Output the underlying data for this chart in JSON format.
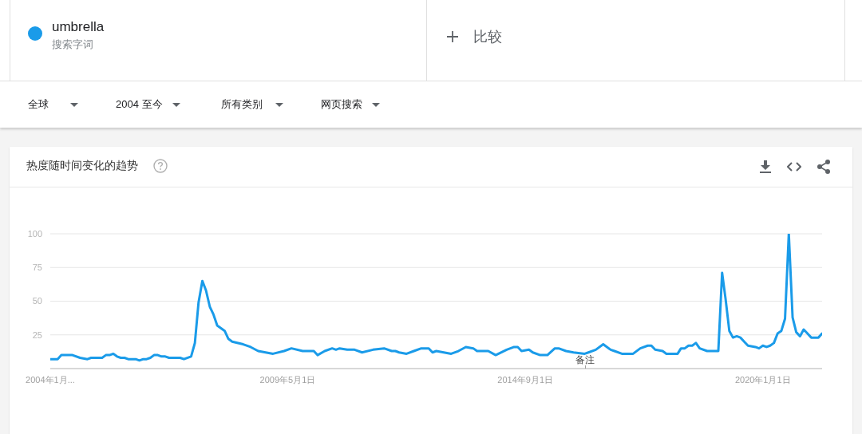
{
  "chart_data": {
    "type": "line",
    "title": "热度随时间变化的趋势",
    "annotations": [
      "搜索字词",
      "比较",
      "全球",
      "2004 至今",
      "所有类别",
      "网页搜索",
      "备注"
    ],
    "x": [
      "2004-01",
      "2004-03",
      "2004-04",
      "2004-07",
      "2004-09",
      "2004-11",
      "2004-12",
      "2005-03",
      "2005-04",
      "2005-05",
      "2005-06",
      "2005-07",
      "2005-08",
      "2005-09",
      "2005-10",
      "2005-12",
      "2006-01",
      "2006-02",
      "2006-03",
      "2006-04",
      "2006-05",
      "2006-06",
      "2006-07",
      "2006-08",
      "2006-09",
      "2006-12",
      "2007-01",
      "2007-03",
      "2007-04",
      "2007-05",
      "2007-06",
      "2007-07",
      "2007-08",
      "2007-09",
      "2007-10",
      "2007-12",
      "2008-01",
      "2008-02",
      "2008-05",
      "2008-07",
      "2008-09",
      "2008-11",
      "2009-01",
      "2009-04",
      "2009-06",
      "2009-09",
      "2009-12",
      "2010-01",
      "2010-03",
      "2010-05",
      "2010-06",
      "2010-07",
      "2010-09",
      "2010-11",
      "2011-01",
      "2011-04",
      "2011-07",
      "2011-09",
      "2011-10",
      "2011-11",
      "2012-01",
      "2012-03",
      "2012-05",
      "2012-07",
      "2012-08",
      "2012-09",
      "2012-11",
      "2013-01",
      "2013-03",
      "2013-05",
      "2013-07",
      "2013-08",
      "2013-11",
      "2014-01",
      "2014-04",
      "2014-06",
      "2014-07",
      "2014-08",
      "2014-10",
      "2014-11",
      "2015-01",
      "2015-03",
      "2015-05",
      "2015-06",
      "2015-08",
      "2015-10",
      "2016-01",
      "2016-02",
      "2016-04",
      "2016-06",
      "2016-08",
      "2016-09",
      "2016-11",
      "2017-02",
      "2017-04",
      "2017-06",
      "2017-07",
      "2017-08",
      "2017-10",
      "2017-11",
      "2018-02",
      "2018-03",
      "2018-04",
      "2018-05",
      "2018-06",
      "2018-07",
      "2018-08",
      "2018-10",
      "2019-01",
      "2019-02",
      "2019-03",
      "2019-04",
      "2019-05",
      "2019-06",
      "2019-07",
      "2019-08",
      "2019-09",
      "2019-11",
      "2019-12",
      "2020-01",
      "2020-02",
      "2020-03",
      "2020-04",
      "2020-05",
      "2020-06",
      "2020-07",
      "2020-08",
      "2020-09",
      "2020-10",
      "2020-11",
      "2020-12",
      "2021-01",
      "2021-02",
      "2021-04",
      "2021-05"
    ],
    "series": [
      {
        "name": "umbrella",
        "color": "#1a9be9",
        "values": [
          7,
          7,
          10,
          10,
          8,
          7,
          8,
          8,
          10,
          10,
          11,
          9,
          8,
          8,
          7,
          7,
          6,
          7,
          7,
          8,
          10,
          10,
          9,
          9,
          8,
          8,
          7,
          9,
          19,
          49,
          65,
          58,
          46,
          40,
          32,
          28,
          22,
          20,
          18,
          16,
          13,
          12,
          11,
          13,
          15,
          13,
          13,
          10,
          13,
          15,
          14,
          15,
          14,
          14,
          12,
          14,
          15,
          13,
          13,
          12,
          11,
          13,
          15,
          15,
          12,
          13,
          12,
          11,
          13,
          16,
          15,
          13,
          13,
          10,
          14,
          16,
          16,
          13,
          14,
          12,
          10,
          10,
          15,
          15,
          13,
          12,
          11,
          12,
          14,
          18,
          14,
          13,
          11,
          11,
          15,
          17,
          17,
          14,
          13,
          11,
          11,
          15,
          15,
          17,
          17,
          19,
          15,
          13,
          13,
          71,
          52,
          28,
          23,
          24,
          23,
          20,
          17,
          16,
          15,
          17,
          16,
          17,
          19,
          26,
          28,
          37,
          100,
          38,
          27,
          24,
          29,
          26,
          23,
          23,
          26
        ]
      }
    ],
    "xlim": [
      "2004-01",
      "2021-05"
    ],
    "xticks": [
      {
        "value": "2004-01",
        "label": "2004年1月..."
      },
      {
        "value": "2009-05",
        "label": "2009年5月1日"
      },
      {
        "value": "2014-09",
        "label": "2014年9月1日"
      },
      {
        "value": "2020-01",
        "label": "2020年1月1日"
      }
    ],
    "ylim": [
      0,
      100
    ],
    "yticks": [
      25,
      50,
      75,
      100
    ],
    "grid": "y",
    "legend": "top left"
  }
}
